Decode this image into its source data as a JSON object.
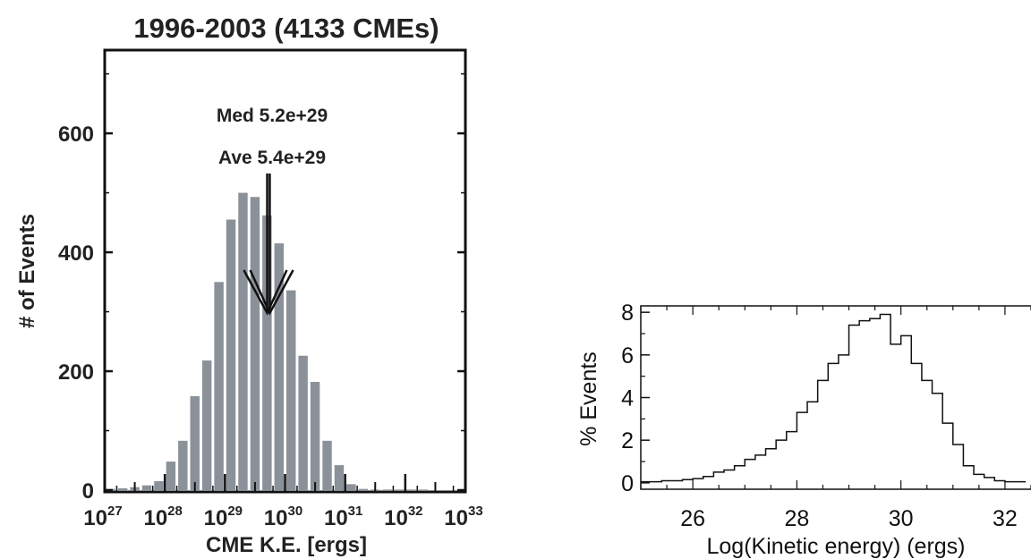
{
  "chart_data": [
    {
      "type": "bar",
      "title": "1996-2003 (4133 CMEs)",
      "xlabel": "CME K.E. [ergs]",
      "ylabel": "# of Events",
      "x_scale": "log",
      "x_tick_labels": [
        {
          "base": "10",
          "exp": "27"
        },
        {
          "base": "10",
          "exp": "28"
        },
        {
          "base": "10",
          "exp": "29"
        },
        {
          "base": "10",
          "exp": "30"
        },
        {
          "base": "10",
          "exp": "31"
        },
        {
          "base": "10",
          "exp": "32"
        },
        {
          "base": "10",
          "exp": "33"
        }
      ],
      "y_ticks": [
        0,
        200,
        400,
        600
      ],
      "ylim": [
        0,
        740
      ],
      "xlim_log10": [
        27,
        33
      ],
      "bin_width_log10": 0.2,
      "bins_log10_start": [
        27.0,
        27.2,
        27.4,
        27.6,
        27.8,
        28.0,
        28.2,
        28.4,
        28.6,
        28.8,
        29.0,
        29.2,
        29.4,
        29.6,
        29.8,
        30.0,
        30.2,
        30.4,
        30.6,
        30.8,
        31.0,
        31.2,
        31.4,
        31.6,
        31.8,
        32.0,
        32.2,
        32.4,
        32.6,
        32.8
      ],
      "values": [
        2,
        3,
        5,
        8,
        15,
        48,
        83,
        158,
        218,
        350,
        455,
        500,
        493,
        462,
        415,
        336,
        226,
        182,
        83,
        42,
        10,
        2,
        1,
        1,
        1,
        1,
        1,
        0,
        0,
        0
      ],
      "bar_color": "#8a9199",
      "annotations": {
        "median_label": "Med 5.2e+29",
        "average_label": "Ave 5.4e+29",
        "median_value": 5.2e+29,
        "average_value": 5.4e+29
      }
    },
    {
      "type": "line",
      "style": "step",
      "xlabel": "Log(Kinetic energy) (ergs)",
      "ylabel": "% Events",
      "x_ticks": [
        26,
        28,
        30,
        32
      ],
      "y_ticks": [
        0,
        2,
        4,
        6,
        8
      ],
      "xlim": [
        25,
        32.5
      ],
      "ylim": [
        -0.3,
        8.3
      ],
      "bin_width": 0.2,
      "bins_start": [
        25.0,
        25.2,
        25.4,
        25.6,
        25.8,
        26.0,
        26.2,
        26.4,
        26.6,
        26.8,
        27.0,
        27.2,
        27.4,
        27.6,
        27.8,
        28.0,
        28.2,
        28.4,
        28.6,
        28.8,
        29.0,
        29.2,
        29.4,
        29.6,
        29.8,
        30.0,
        30.2,
        30.4,
        30.6,
        30.8,
        31.0,
        31.2,
        31.4,
        31.6,
        31.8,
        32.0,
        32.2
      ],
      "values": [
        0.05,
        0.05,
        0.1,
        0.1,
        0.15,
        0.2,
        0.3,
        0.5,
        0.6,
        0.8,
        1.1,
        1.3,
        1.6,
        2.0,
        2.4,
        3.3,
        3.8,
        4.8,
        5.6,
        6.0,
        7.4,
        7.6,
        7.7,
        7.9,
        6.5,
        6.9,
        5.6,
        4.8,
        4.2,
        2.8,
        1.8,
        0.8,
        0.4,
        0.25,
        0.1,
        0.05,
        0.05
      ]
    }
  ]
}
